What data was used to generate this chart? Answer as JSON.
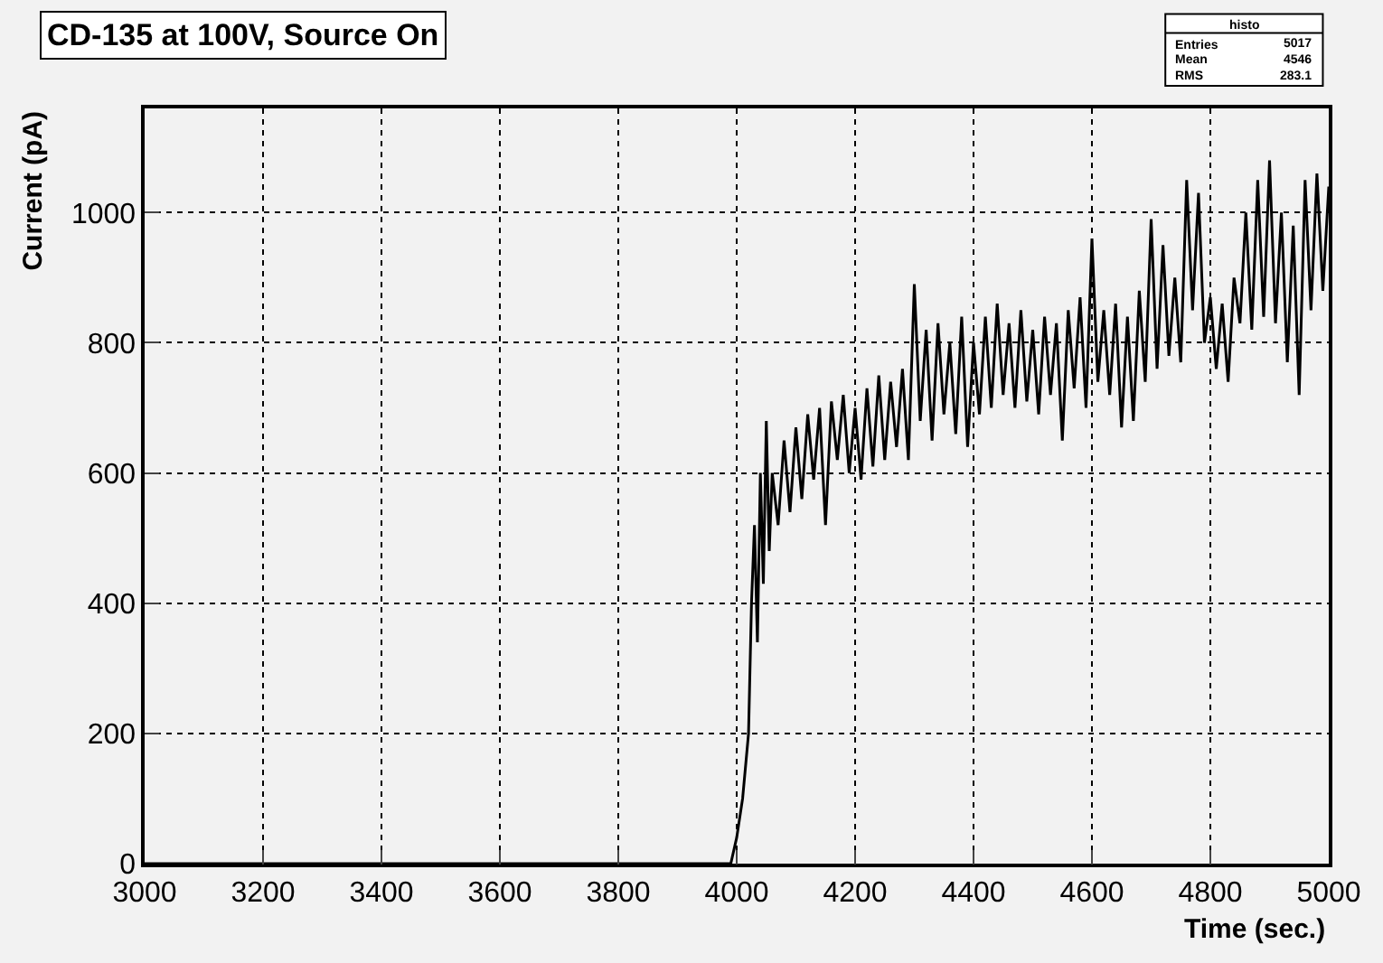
{
  "chart_data": {
    "type": "line",
    "title": "CD-135 at 100V, Source On",
    "xlabel": "Time (sec.)",
    "ylabel": "Current (pA)",
    "annotations": [
      "histo",
      "Entries",
      "5017",
      "Mean",
      "4546",
      "RMS",
      "283.1"
    ],
    "x": [
      3000,
      3990,
      4000,
      4010,
      4020,
      4025,
      4030,
      4035,
      4040,
      4045,
      4050,
      4055,
      4060,
      4070,
      4080,
      4090,
      4100,
      4110,
      4120,
      4130,
      4140,
      4150,
      4160,
      4170,
      4180,
      4190,
      4200,
      4210,
      4220,
      4230,
      4240,
      4250,
      4260,
      4270,
      4280,
      4290,
      4300,
      4310,
      4320,
      4330,
      4340,
      4350,
      4360,
      4370,
      4380,
      4390,
      4400,
      4410,
      4420,
      4430,
      4440,
      4450,
      4460,
      4470,
      4480,
      4490,
      4500,
      4510,
      4520,
      4530,
      4540,
      4550,
      4560,
      4570,
      4580,
      4590,
      4600,
      4610,
      4620,
      4630,
      4640,
      4650,
      4660,
      4670,
      4680,
      4690,
      4700,
      4710,
      4720,
      4730,
      4740,
      4750,
      4760,
      4770,
      4780,
      4790,
      4800,
      4810,
      4820,
      4830,
      4840,
      4850,
      4860,
      4870,
      4880,
      4890,
      4900,
      4910,
      4920,
      4930,
      4940,
      4950,
      4960,
      4970,
      4980,
      4990,
      5000
    ],
    "series": [
      {
        "color": "#000000",
        "values": [
          0,
          0,
          40,
          100,
          200,
          400,
          520,
          340,
          600,
          430,
          680,
          480,
          600,
          520,
          650,
          540,
          670,
          560,
          690,
          590,
          700,
          520,
          710,
          620,
          720,
          600,
          700,
          590,
          730,
          610,
          750,
          620,
          740,
          640,
          760,
          620,
          890,
          680,
          820,
          650,
          830,
          690,
          800,
          660,
          840,
          640,
          800,
          690,
          840,
          700,
          860,
          720,
          830,
          700,
          850,
          710,
          820,
          690,
          840,
          720,
          830,
          650,
          850,
          730,
          870,
          700,
          960,
          740,
          850,
          720,
          860,
          670,
          840,
          680,
          880,
          740,
          990,
          760,
          950,
          780,
          900,
          770,
          1050,
          850,
          1030,
          800,
          870,
          760,
          860,
          740,
          900,
          830,
          1000,
          820,
          1050,
          840,
          1080,
          830,
          1000,
          770,
          980,
          720,
          1050,
          850,
          1060,
          880,
          1040
        ]
      }
    ],
    "xlim": [
      3000,
      5000
    ],
    "xticks": [
      3000,
      3200,
      3400,
      3600,
      3800,
      4000,
      4200,
      4400,
      4600,
      4800,
      5000
    ],
    "ylim": [
      0,
      1160
    ],
    "yticks": [
      0,
      200,
      400,
      600,
      800,
      1000
    ],
    "grid": true,
    "marker": "none",
    "line_style": "solid"
  }
}
